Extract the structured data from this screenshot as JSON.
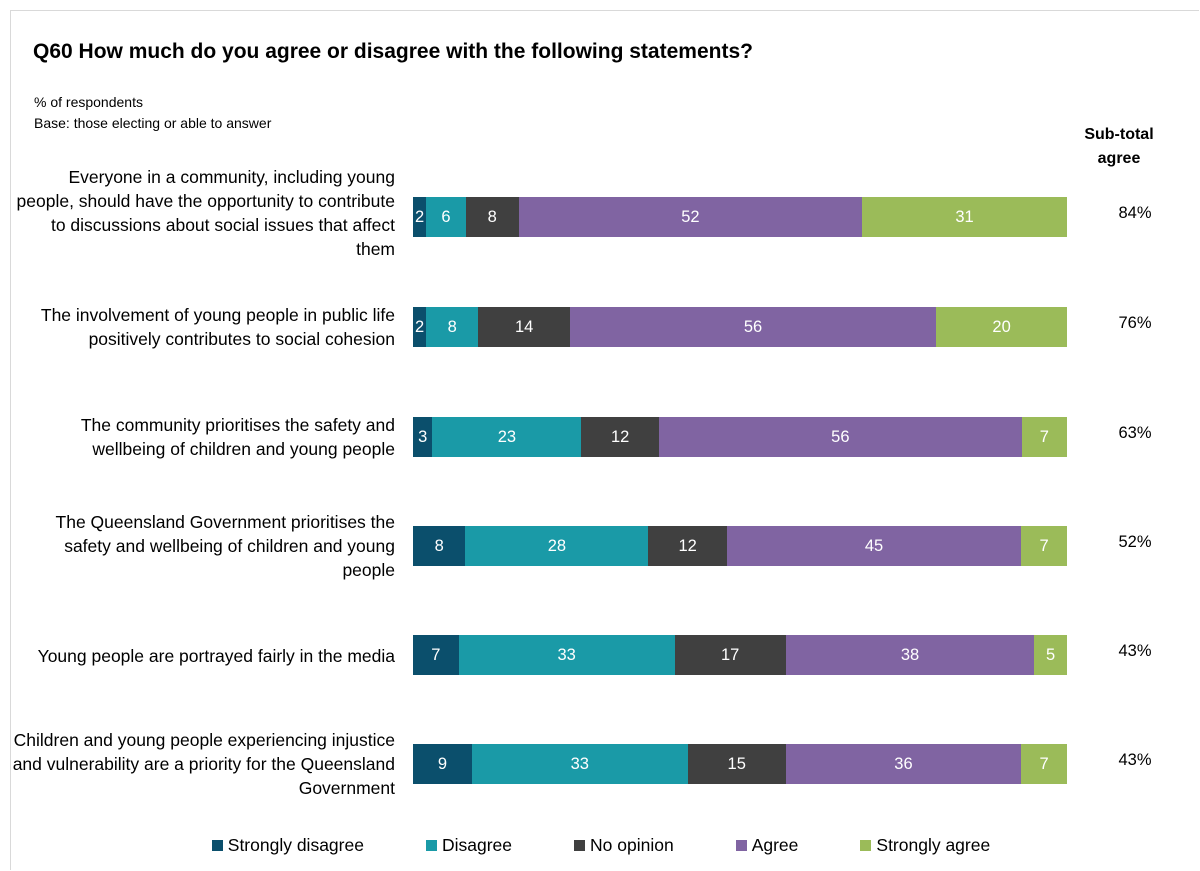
{
  "title": "Q60 How much do you agree or disagree with the following statements?",
  "subtitle_line1": "% of respondents",
  "subtitle_line2": "Base: those electing or able to answer",
  "subtotal_header_line1": "Sub-total",
  "subtotal_header_line2": "agree",
  "colors": {
    "strongly_disagree": "#0b4f6c",
    "disagree": "#1a9aa7",
    "no_opinion": "#404040",
    "agree": "#8064a2",
    "strongly_agree": "#9bbb59"
  },
  "chart_data": {
    "type": "bar",
    "orientation": "horizontal",
    "stacked": true,
    "title": "Q60 How much do you agree or disagree with the following statements?",
    "categories": [
      "Everyone in a community, including young people, should have the opportunity to contribute to discussions about social issues that affect them",
      "The involvement of young people in public life positively contributes to social cohesion",
      "The community prioritises the safety and wellbeing of children and young people",
      "The Queensland Government prioritises the safety and wellbeing of children and young people",
      "Young people are portrayed fairly in the media",
      "Children and young people experiencing injustice and vulnerability are a priority for the Queensland Government"
    ],
    "series": [
      {
        "name": "Strongly disagree",
        "key": "strongly_disagree",
        "values": [
          2,
          2,
          3,
          8,
          7,
          9
        ]
      },
      {
        "name": "Disagree",
        "key": "disagree",
        "values": [
          6,
          8,
          23,
          28,
          33,
          33
        ]
      },
      {
        "name": "No opinion",
        "key": "no_opinion",
        "values": [
          8,
          14,
          12,
          12,
          17,
          15
        ]
      },
      {
        "name": "Agree",
        "key": "agree",
        "values": [
          52,
          56,
          56,
          45,
          38,
          36
        ]
      },
      {
        "name": "Strongly agree",
        "key": "strongly_agree",
        "values": [
          31,
          20,
          7,
          7,
          5,
          7
        ]
      }
    ],
    "subtotal_agree": [
      "84%",
      "76%",
      "63%",
      "52%",
      "43%",
      "43%"
    ],
    "legend_position": "bottom",
    "grid": false
  }
}
